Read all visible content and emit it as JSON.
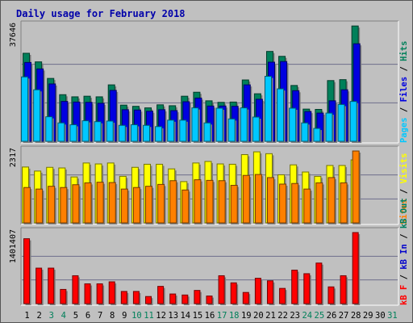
{
  "chart_data": {
    "type": "bar",
    "title": "Daily usage for February 2018",
    "categories": [
      "1",
      "2",
      "3",
      "4",
      "5",
      "6",
      "7",
      "8",
      "9",
      "10",
      "11",
      "12",
      "13",
      "14",
      "15",
      "16",
      "17",
      "18",
      "19",
      "20",
      "21",
      "22",
      "23",
      "24",
      "25",
      "26",
      "27",
      "28",
      "29",
      "30",
      "31"
    ],
    "weekend_days": [
      "3",
      "4",
      "10",
      "11",
      "17",
      "18",
      "24",
      "25",
      "31"
    ],
    "colors": {
      "hits": "#00805a",
      "files": "#0000e0",
      "pages": "#00c8ff",
      "visits": "#ffff00",
      "sites": "#ff8000",
      "kb_in": "#0000cc",
      "kb_out": "#008060",
      "kb_f": "#ff0000",
      "weekday_label": "#000000",
      "weekend_label": "#00805a"
    },
    "panels": [
      {
        "id": "hits_files_pages",
        "ymax_label": "37646",
        "ylim": [
          0,
          37646
        ],
        "legend": [
          {
            "text": "Pages",
            "color": "#00c8ff"
          },
          {
            "text": " / ",
            "color": "#000000"
          },
          {
            "text": "Files",
            "color": "#0000e0"
          },
          {
            "text": " / ",
            "color": "#000000"
          },
          {
            "text": "Hits",
            "color": "#00805a"
          }
        ],
        "series": [
          {
            "name": "Hits",
            "color": "#00805a",
            "values": [
              28700,
              25900,
              20500,
              15200,
              14500,
              14700,
              14500,
              18400,
              11800,
              11400,
              10900,
              11900,
              11600,
              14700,
              16000,
              13200,
              12700,
              12800,
              20000,
              15500,
              29300,
              27700,
              18200,
              10500,
              10400,
              19800,
              20100,
              37600,
              0,
              0,
              0
            ]
          },
          {
            "name": "Files",
            "color": "#0000e0",
            "values": [
              25700,
              23600,
              18700,
              13000,
              12800,
              12700,
              12400,
              16600,
              10300,
              10200,
              9800,
              10300,
              10000,
              12900,
              14100,
              11500,
              11500,
              11400,
              18400,
              13700,
              25800,
              26000,
              16500,
              9700,
              9200,
              13200,
              16800,
              31800,
              0,
              0,
              0
            ]
          },
          {
            "name": "Pages",
            "color": "#00c8ff",
            "values": [
              21000,
              16800,
              8000,
              6000,
              5400,
              6700,
              6400,
              6600,
              5200,
              5400,
              5200,
              4800,
              6900,
              6900,
              10900,
              6000,
              10800,
              7300,
              10900,
              7900,
              21200,
              17100,
              10800,
              6000,
              4200,
              9200,
              12000,
              13000,
              0,
              0,
              0
            ]
          }
        ]
      },
      {
        "id": "visits_sites",
        "ymax_label": "2317",
        "ylim": [
          0,
          2317
        ],
        "legend": [
          {
            "text": "Sites",
            "color": "#ff8000"
          },
          {
            "text": " / ",
            "color": "#000000"
          },
          {
            "text": "Visits",
            "color": "#ffff00"
          }
        ],
        "series": [
          {
            "name": "Visits",
            "color": "#ffff00",
            "values": [
              1800,
              1670,
              1790,
              1770,
              1480,
              1930,
              1900,
              1930,
              1500,
              1790,
              1890,
              1890,
              1740,
              1330,
              1930,
              1980,
              1900,
              1890,
              2200,
              2290,
              2230,
              1550,
              1870,
              1640,
              1500,
              1850,
              1850,
              2030,
              0,
              0,
              0
            ]
          },
          {
            "name": "Sites",
            "color": "#ff8000",
            "values": [
              1140,
              1090,
              1180,
              1140,
              1230,
              1290,
              1310,
              1300,
              1090,
              1140,
              1180,
              1240,
              1360,
              1060,
              1390,
              1370,
              1360,
              1210,
              1530,
              1560,
              1460,
              1250,
              1270,
              1090,
              1290,
              1460,
              1290,
              2317,
              0,
              0,
              0
            ]
          }
        ]
      },
      {
        "id": "kb",
        "ymax_label": "1401407",
        "ylim": [
          0,
          1401407
        ],
        "legend": [
          {
            "text": "kB F",
            "color": "#ff0000"
          },
          {
            "text": " / ",
            "color": "#000000"
          },
          {
            "text": "kB In",
            "color": "#0000cc"
          },
          {
            "text": " / ",
            "color": "#000000"
          },
          {
            "text": "kB Out",
            "color": "#008060"
          }
        ],
        "series": [
          {
            "name": "kB F",
            "color": "#ff0000",
            "values": [
              1280000,
              700000,
              700000,
              280000,
              550000,
              390000,
              390000,
              430000,
              240000,
              240000,
              140000,
              340000,
              190000,
              170000,
              260000,
              150000,
              550000,
              410000,
              220000,
              500000,
              450000,
              300000,
              660000,
              590000,
              800000,
              330000,
              550000,
              1401407,
              0,
              0,
              0
            ]
          }
        ]
      }
    ]
  }
}
